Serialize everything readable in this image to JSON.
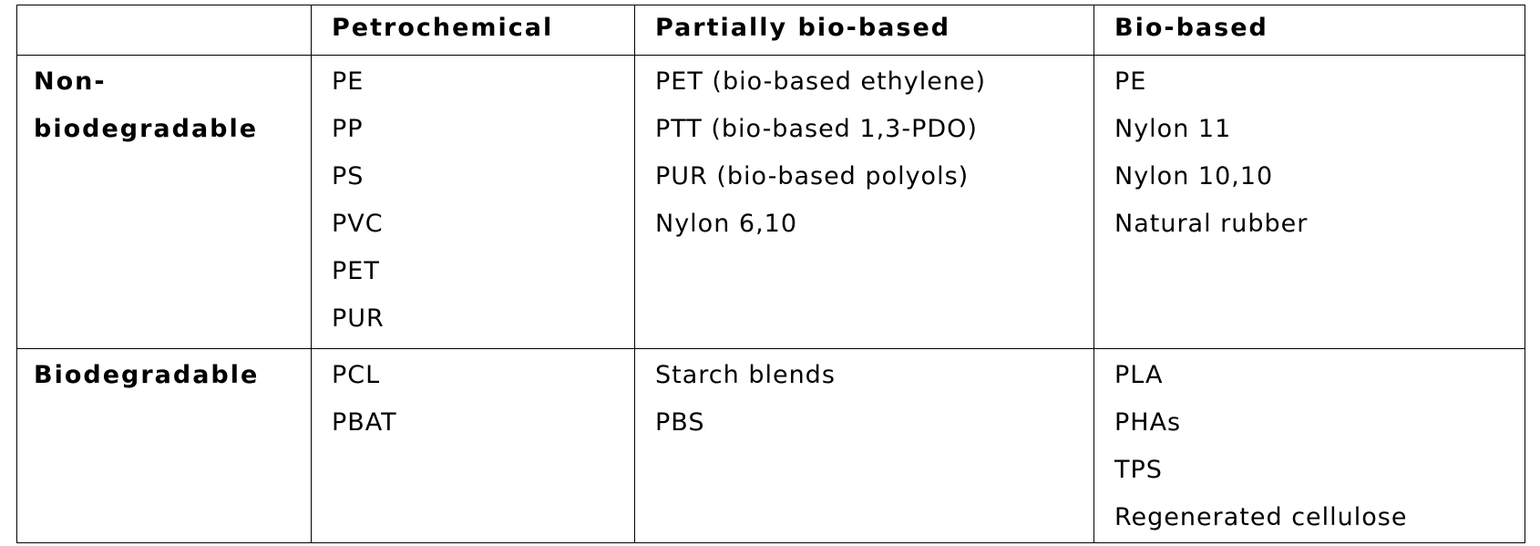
{
  "header": [
    "Petrochemical",
    "Partially bio-based",
    "Bio-based"
  ],
  "rows": [
    {
      "label": "Non-biodegradable",
      "cells": [
        [
          "PE",
          "PP",
          "PS",
          "PVC",
          "PET",
          "PUR"
        ],
        [
          "PET (bio-based ethylene)",
          "PTT (bio-based 1,3-PDO)",
          "PUR (bio-based polyols)",
          "Nylon 6,10"
        ],
        [
          "PE",
          "Nylon 11",
          "Nylon 10,10",
          "Natural rubber"
        ]
      ]
    },
    {
      "label": "Biodegradable",
      "cells": [
        [
          "PCL",
          "PBAT"
        ],
        [
          "Starch blends",
          "PBS"
        ],
        [
          "PLA",
          "PHAs",
          "TPS",
          "Regenerated cellulose"
        ]
      ]
    }
  ]
}
